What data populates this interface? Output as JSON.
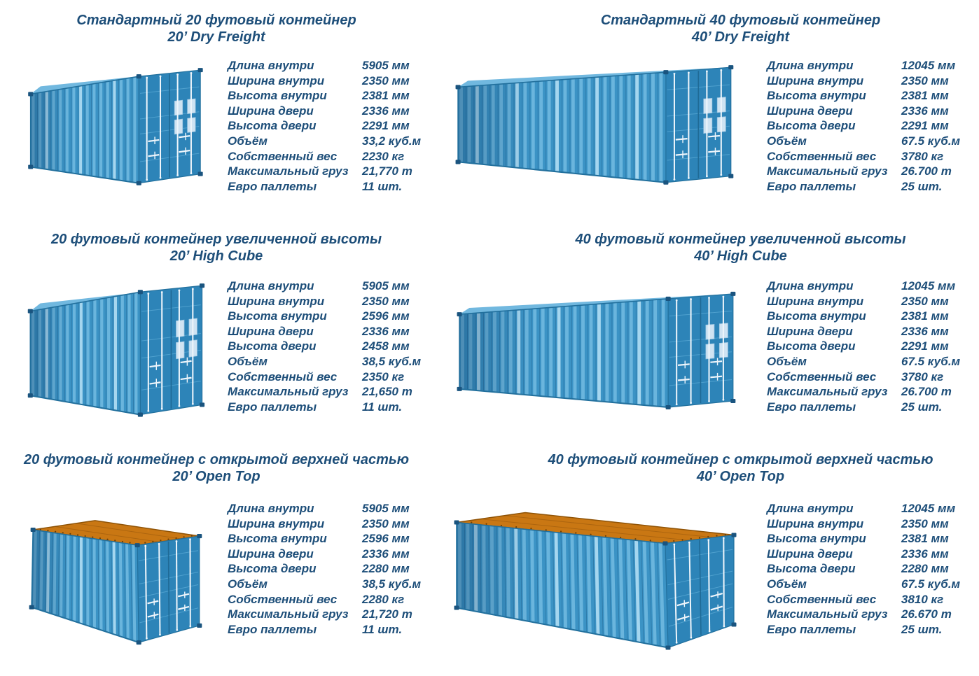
{
  "colors": {
    "background": "#ffffff",
    "text": "#1d4e79",
    "container_side_blue": "#3b93c5",
    "container_side_light": "#6ab5dd",
    "container_side_highlight": "#a5d6ef",
    "container_top_blue": "#71b8df",
    "container_door_blue": "#2d84b8",
    "container_edge_blue": "#22709d",
    "container_corner_blue": "#1a547f",
    "lock_rod_white": "#eef5fb",
    "vent_light_blue": "#cfe3f2",
    "tarp_orange": "#c97713",
    "tarp_edge_orange": "#8f5306"
  },
  "panels": [
    {
      "id": "20-dry-freight",
      "title_ru": "Стандартный 20 футовый контейнер",
      "title_en": "20’ Dry Freight",
      "container": {
        "size": "20ft",
        "variant": "dry-freight",
        "open_top": false
      },
      "specs": [
        {
          "label": "Длина внутри",
          "value": "5905 мм"
        },
        {
          "label": "Ширина внутри",
          "value": "2350 мм"
        },
        {
          "label": "Высота внутри",
          "value": "2381 мм"
        },
        {
          "label": "Ширина двери",
          "value": "2336 мм"
        },
        {
          "label": "Высота двери",
          "value": "2291 мм"
        },
        {
          "label": "Объём",
          "value": "33,2 куб.м"
        },
        {
          "label": "Собственный вес",
          "value": "2230 кг"
        },
        {
          "label": "Максимальный груз",
          "value": "21,770 т"
        },
        {
          "label": "Евро паллеты",
          "value": "11 шт."
        }
      ]
    },
    {
      "id": "40-dry-freight",
      "title_ru": "Стандартный 40 футовый контейнер",
      "title_en": "40’ Dry Freight",
      "container": {
        "size": "40ft",
        "variant": "dry-freight",
        "open_top": false
      },
      "specs": [
        {
          "label": "Длина внутри",
          "value": "12045 мм"
        },
        {
          "label": "Ширина внутри",
          "value": "2350 мм"
        },
        {
          "label": "Высота внутри",
          "value": "2381 мм"
        },
        {
          "label": "Ширина двери",
          "value": "2336 мм"
        },
        {
          "label": "Высота двери",
          "value": "2291 мм"
        },
        {
          "label": "Объём",
          "value": "67.5 куб.м"
        },
        {
          "label": "Собственный вес",
          "value": "3780 кг"
        },
        {
          "label": "Максимальный груз",
          "value": "26.700 т"
        },
        {
          "label": "Евро паллеты",
          "value": "25 шт."
        }
      ]
    },
    {
      "id": "20-high-cube",
      "title_ru": "20 футовый контейнер увеличенной высоты",
      "title_en": "20’ High Cube",
      "container": {
        "size": "20ft",
        "variant": "high-cube",
        "open_top": false
      },
      "specs": [
        {
          "label": "Длина внутри",
          "value": "5905 мм"
        },
        {
          "label": "Ширина внутри",
          "value": "2350 мм"
        },
        {
          "label": "Высота внутри",
          "value": "2596 мм"
        },
        {
          "label": "Ширина двери",
          "value": "2336 мм"
        },
        {
          "label": "Высота двери",
          "value": "2458 мм"
        },
        {
          "label": "Объём",
          "value": "38,5 куб.м"
        },
        {
          "label": "Собственный вес",
          "value": "2350 кг"
        },
        {
          "label": "Максимальный груз",
          "value": "21,650 т"
        },
        {
          "label": "Евро паллеты",
          "value": "11 шт."
        }
      ]
    },
    {
      "id": "40-high-cube",
      "title_ru": "40 футовый контейнер увеличенной высоты",
      "title_en": "40’ High Cube",
      "container": {
        "size": "40ft",
        "variant": "high-cube",
        "open_top": false
      },
      "specs": [
        {
          "label": "Длина внутри",
          "value": "12045 мм"
        },
        {
          "label": "Ширина внутри",
          "value": "2350 мм"
        },
        {
          "label": "Высота внутри",
          "value": "2381 мм"
        },
        {
          "label": "Ширина двери",
          "value": "2336 мм"
        },
        {
          "label": "Высота двери",
          "value": "2291 мм"
        },
        {
          "label": "Объём",
          "value": "67.5 куб.м"
        },
        {
          "label": "Собственный вес",
          "value": "3780 кг"
        },
        {
          "label": "Максимальный груз",
          "value": "26.700 т"
        },
        {
          "label": "Евро паллеты",
          "value": "25 шт."
        }
      ]
    },
    {
      "id": "20-open-top",
      "title_ru": "20 футовый контейнер с открытой верхней частью",
      "title_en": "20’ Open Top",
      "container": {
        "size": "20ft",
        "variant": "open-top",
        "open_top": true
      },
      "specs": [
        {
          "label": "Длина внутри",
          "value": "5905 мм"
        },
        {
          "label": "Ширина внутри",
          "value": "2350 мм"
        },
        {
          "label": "Высота внутри",
          "value": "2596 мм"
        },
        {
          "label": "Ширина двери",
          "value": "2336 мм"
        },
        {
          "label": "Высота двери",
          "value": "2280 мм"
        },
        {
          "label": "Объём",
          "value": "38,5 куб.м"
        },
        {
          "label": "Собственный вес",
          "value": "2280 кг"
        },
        {
          "label": "Максимальный груз",
          "value": "21,720 т"
        },
        {
          "label": "Евро паллеты",
          "value": "11 шт."
        }
      ]
    },
    {
      "id": "40-open-top",
      "title_ru": "40 футовый контейнер с открытой верхней частью",
      "title_en": "40’ Open Top",
      "container": {
        "size": "40ft",
        "variant": "open-top",
        "open_top": true
      },
      "specs": [
        {
          "label": "Длина внутри",
          "value": "12045 мм"
        },
        {
          "label": "Ширина внутри",
          "value": "2350 мм"
        },
        {
          "label": "Высота внутри",
          "value": "2381 мм"
        },
        {
          "label": "Ширина двери",
          "value": "2336 мм"
        },
        {
          "label": "Высота двери",
          "value": "2280 мм"
        },
        {
          "label": "Объём",
          "value": "67.5 куб.м"
        },
        {
          "label": "Собственный вес",
          "value": "3810 кг"
        },
        {
          "label": "Максимальный груз",
          "value": "26.670 т"
        },
        {
          "label": "Евро паллеты",
          "value": "25 шт."
        }
      ]
    }
  ]
}
